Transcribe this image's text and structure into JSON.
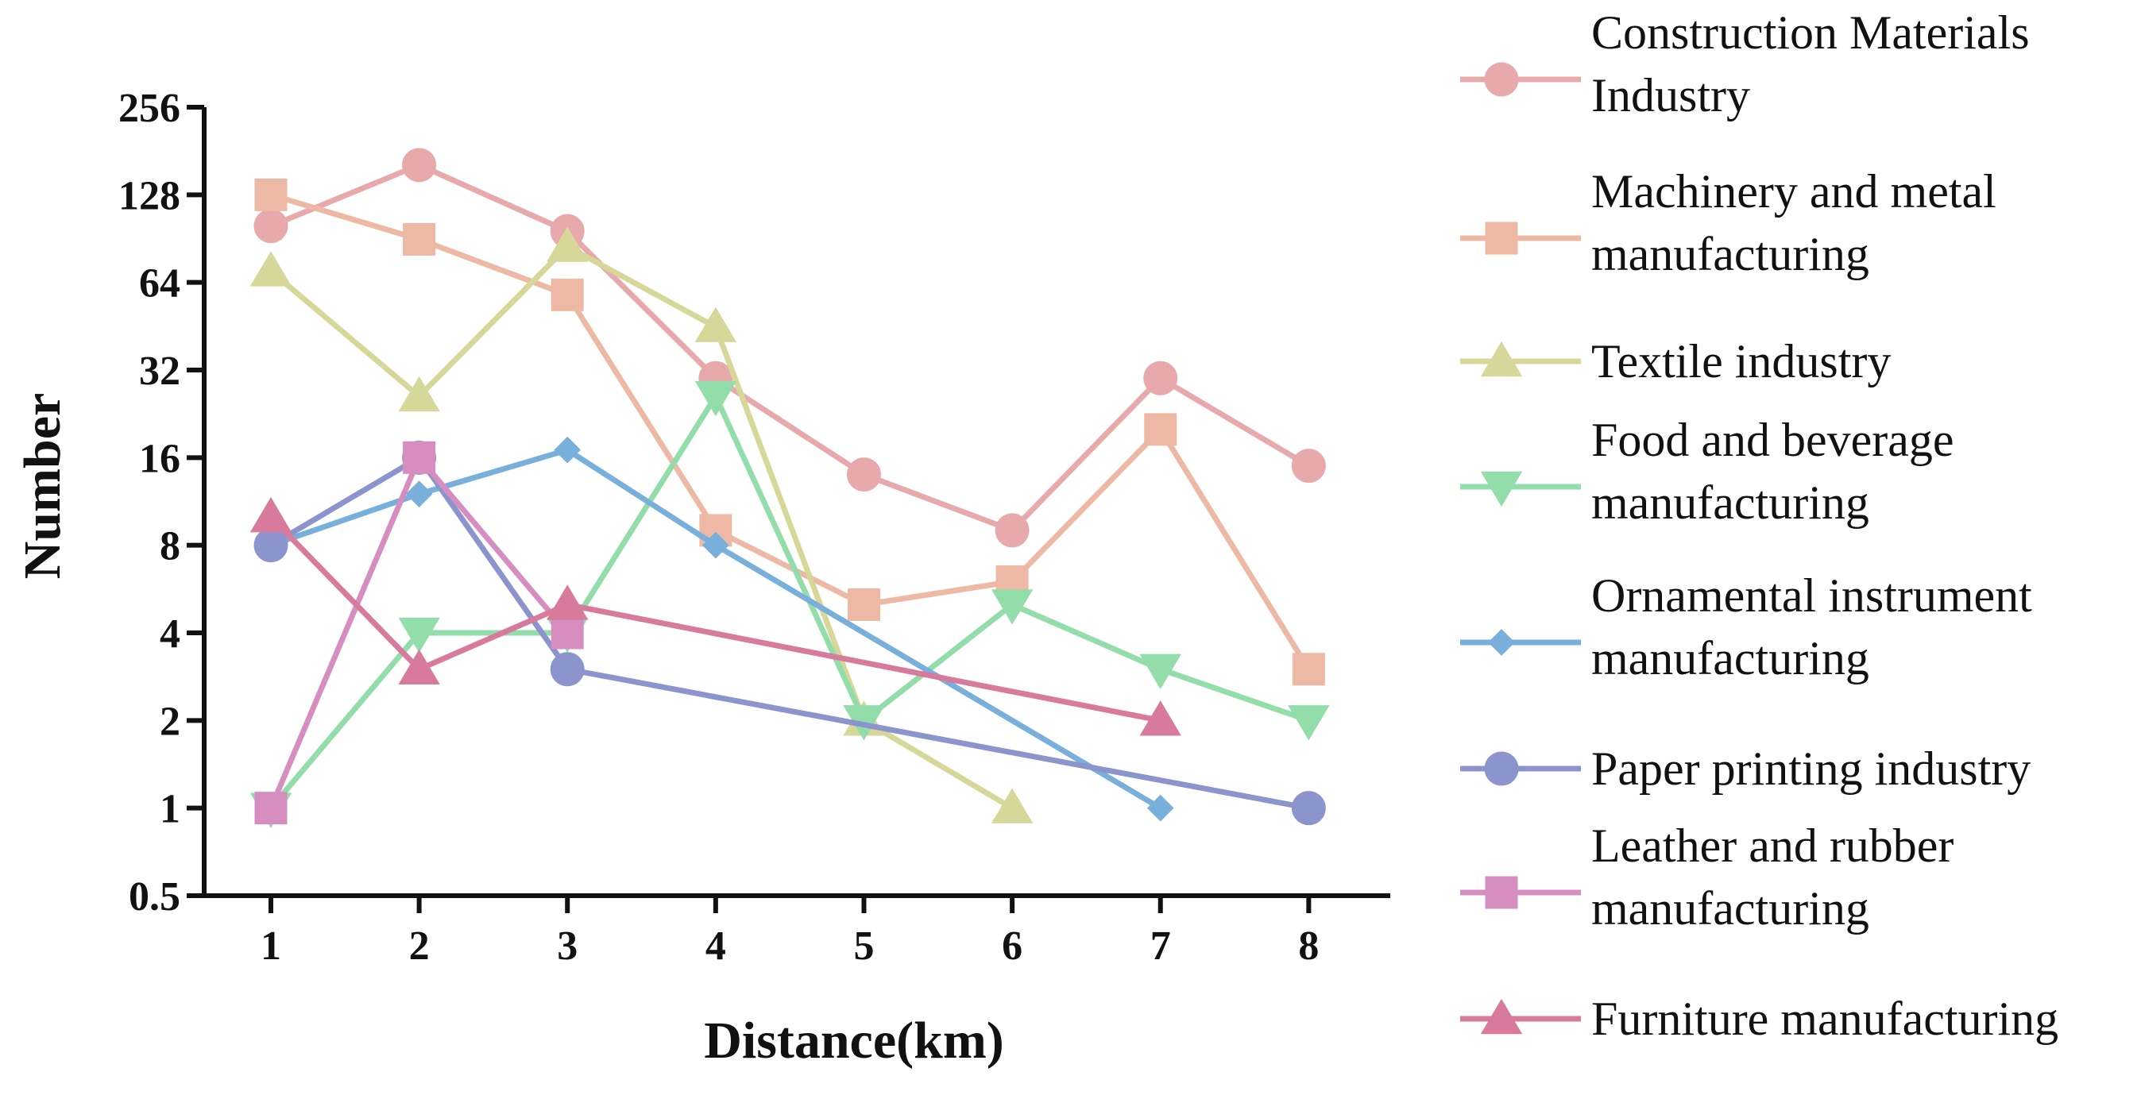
{
  "chart_data": {
    "type": "line",
    "title": "",
    "xlabel": "Distance(km)",
    "ylabel": "Number",
    "yscale": "log2",
    "ylim": [
      0.5,
      256
    ],
    "xlim": [
      0.55,
      8.55
    ],
    "xticks": [
      1,
      2,
      3,
      4,
      5,
      6,
      7,
      8
    ],
    "xtick_labels": [
      "1",
      "2",
      "3",
      "4",
      "5",
      "6",
      "7",
      "8"
    ],
    "yticks": [
      0.5,
      1,
      2,
      4,
      8,
      16,
      32,
      64,
      128,
      256
    ],
    "ytick_labels": [
      "0.5",
      "1",
      "2",
      "4",
      "8",
      "16",
      "32",
      "64",
      "128",
      "256"
    ],
    "grid": false,
    "legend_position": "right",
    "series": [
      {
        "name": "Construction Materials Industry",
        "legend_lines": [
          "Construction Materials",
          "Industry"
        ],
        "color": "#E8A9AC",
        "marker": "circle",
        "points": [
          [
            1,
            100
          ],
          [
            2,
            162
          ],
          [
            3,
            96
          ],
          [
            4,
            30
          ],
          [
            5,
            14
          ],
          [
            6,
            9
          ],
          [
            7,
            30
          ],
          [
            8,
            15
          ]
        ]
      },
      {
        "name": "Machinery and metal manufacturing",
        "legend_lines": [
          "Machinery and metal",
          "manufacturing"
        ],
        "color": "#EDB9A4",
        "marker": "square",
        "points": [
          [
            1,
            128
          ],
          [
            2,
            90
          ],
          [
            3,
            58
          ],
          [
            4,
            9
          ],
          [
            5,
            5
          ],
          [
            6,
            6
          ],
          [
            7,
            20
          ],
          [
            8,
            3
          ]
        ]
      },
      {
        "name": "Textile industry",
        "legend_lines": [
          "Textile industry"
        ],
        "color": "#D6D798",
        "marker": "triangle",
        "points": [
          [
            1,
            70
          ],
          [
            2,
            26
          ],
          [
            3,
            85
          ],
          [
            4,
            45
          ],
          [
            5,
            2
          ],
          [
            6,
            1
          ]
        ]
      },
      {
        "name": "Food and beverage manufacturing",
        "legend_lines": [
          "Food and beverage",
          "manufacturing"
        ],
        "color": "#92DDAA",
        "marker": "triangle-down",
        "points": [
          [
            1,
            1
          ],
          [
            2,
            4
          ],
          [
            3,
            4
          ],
          [
            4,
            26
          ],
          [
            5,
            2
          ],
          [
            6,
            5
          ],
          [
            7,
            3
          ],
          [
            8,
            2
          ]
        ]
      },
      {
        "name": "Ornamental instrument manufacturing",
        "legend_lines": [
          "Ornamental instrument",
          "manufacturing"
        ],
        "color": "#78AFDB",
        "marker": "diamond",
        "points": [
          [
            1,
            8
          ],
          [
            2,
            12
          ],
          [
            3,
            17
          ],
          [
            4,
            8
          ],
          [
            7,
            1
          ]
        ]
      },
      {
        "name": "Paper printing industry",
        "legend_lines": [
          "Paper printing industry"
        ],
        "color": "#8C94CE",
        "marker": "circle",
        "points": [
          [
            1,
            8
          ],
          [
            2,
            16
          ],
          [
            3,
            3
          ],
          [
            8,
            1
          ]
        ]
      },
      {
        "name": "Leather and rubber manufacturing",
        "legend_lines": [
          "Leather and rubber",
          "manufacturing"
        ],
        "color": "#D68EC0",
        "marker": "square",
        "points": [
          [
            1,
            1
          ],
          [
            2,
            16
          ],
          [
            3,
            4
          ]
        ]
      },
      {
        "name": "Furniture manufacturing",
        "legend_lines": [
          "Furniture manufacturing"
        ],
        "color": "#D87A9C",
        "marker": "triangle",
        "points": [
          [
            1,
            10
          ],
          [
            2,
            3
          ],
          [
            3,
            5
          ],
          [
            7,
            2
          ]
        ]
      }
    ]
  }
}
